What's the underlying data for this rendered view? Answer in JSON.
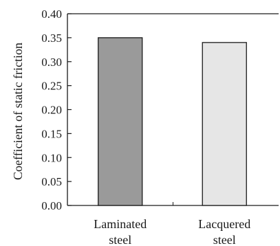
{
  "chart_data": {
    "type": "bar",
    "title": "",
    "xlabel": "",
    "ylabel": "Coefficient of static friction",
    "ylim": [
      0,
      0.4
    ],
    "yticks": [
      "0.00",
      "0.05",
      "0.10",
      "0.15",
      "0.20",
      "0.25",
      "0.30",
      "0.35",
      "0.40"
    ],
    "categories": [
      {
        "line1": "Laminated",
        "line2": "steel"
      },
      {
        "line1": "Lacquered",
        "line2": "steel"
      }
    ],
    "values": [
      0.35,
      0.34
    ],
    "colors": [
      "#9a9a9a",
      "#e6e6e6"
    ],
    "edge_color": "#1a1a1a",
    "grid": false,
    "legend": "none"
  }
}
